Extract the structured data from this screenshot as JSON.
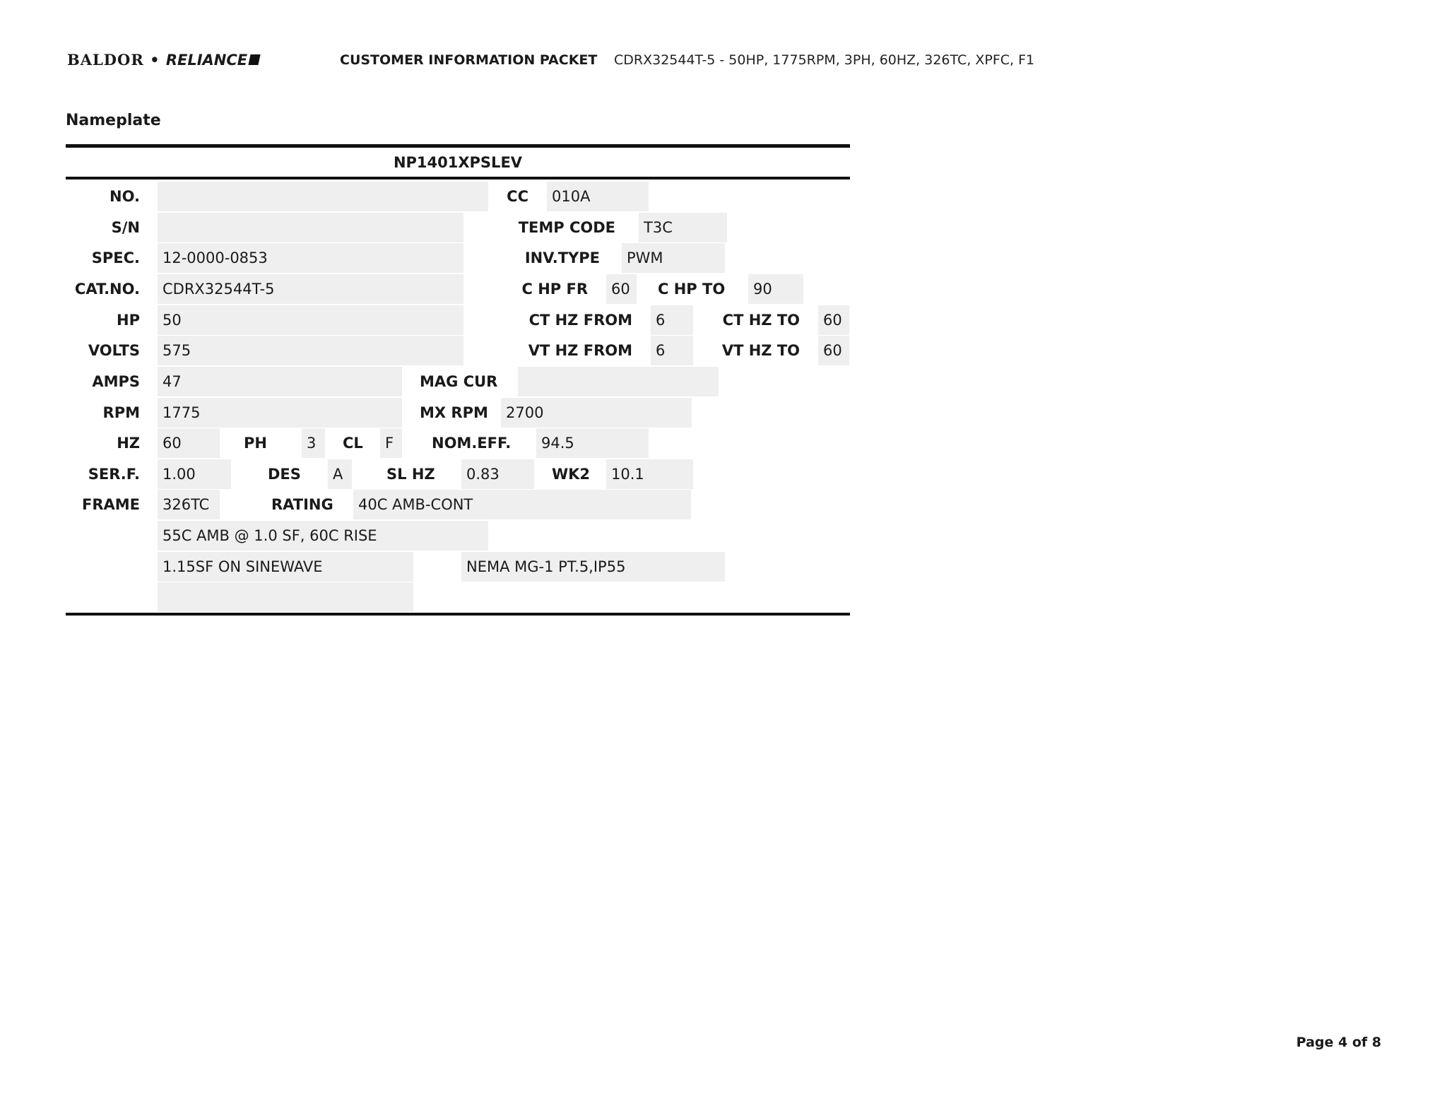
{
  "header": {
    "logo_text": "BALDOR • RELIANCE",
    "logo_left": "BALDOR",
    "logo_right": "RELIANCE",
    "packet_title": "CUSTOMER INFORMATION PACKET",
    "description": "CDRX32544T-5 - 50HP, 1775RPM, 3PH, 60HZ, 326TC, XPFC, F1"
  },
  "section_title": "Nameplate",
  "nameplate": {
    "id": "NP1401XPSLEV",
    "no": {
      "label": "NO.",
      "value": ""
    },
    "cc": {
      "label": "CC",
      "value": "010A"
    },
    "sn": {
      "label": "S/N",
      "value": ""
    },
    "temp_code": {
      "label": "TEMP CODE",
      "value": "T3C"
    },
    "spec": {
      "label": "SPEC.",
      "value": "12-0000-0853"
    },
    "inv_type": {
      "label": "INV.TYPE",
      "value": "PWM"
    },
    "cat_no": {
      "label": "CAT.NO.",
      "value": "CDRX32544T-5"
    },
    "c_hp_fr": {
      "label": "C HP FR",
      "value": "60"
    },
    "c_hp_to": {
      "label": "C HP TO",
      "value": "90"
    },
    "hp": {
      "label": "HP",
      "value": "50"
    },
    "ct_hz_from": {
      "label": "CT HZ FROM",
      "value": "6"
    },
    "ct_hz_to": {
      "label": "CT HZ TO",
      "value": "60"
    },
    "volts": {
      "label": "VOLTS",
      "value": "575"
    },
    "vt_hz_from": {
      "label": "VT HZ FROM",
      "value": "6"
    },
    "vt_hz_to": {
      "label": "VT HZ TO",
      "value": "60"
    },
    "amps": {
      "label": "AMPS",
      "value": "47"
    },
    "mag_cur": {
      "label": "MAG CUR",
      "value": ""
    },
    "rpm": {
      "label": "RPM",
      "value": "1775"
    },
    "mx_rpm": {
      "label": "MX RPM",
      "value": "2700"
    },
    "hz": {
      "label": "HZ",
      "value": "60"
    },
    "ph": {
      "label": "PH",
      "value": "3"
    },
    "cl": {
      "label": "CL",
      "value": "F"
    },
    "nom_eff": {
      "label": "NOM.EFF.",
      "value": "94.5"
    },
    "ser_f": {
      "label": "SER.F.",
      "value": "1.00"
    },
    "des": {
      "label": "DES",
      "value": "A"
    },
    "sl_hz": {
      "label": "SL HZ",
      "value": "0.83"
    },
    "wk2": {
      "label": "WK2",
      "value": "10.1"
    },
    "frame": {
      "label": "FRAME",
      "value": "326TC"
    },
    "rating": {
      "label": "RATING",
      "value": "40C AMB-CONT"
    },
    "note1": "55C AMB @ 1.0 SF, 60C RISE",
    "note2": "1.15SF ON SINEWAVE",
    "note3": "NEMA MG-1 PT.5,IP55",
    "note4": ""
  },
  "footer": {
    "page": "Page 4 of 8"
  }
}
